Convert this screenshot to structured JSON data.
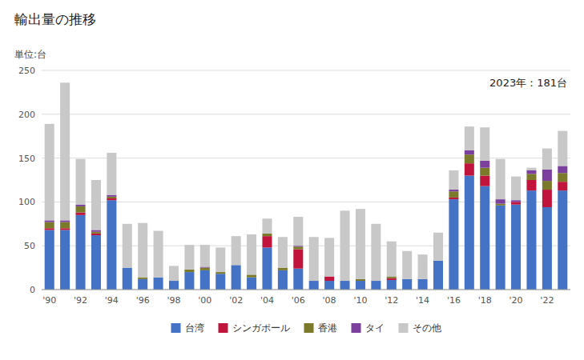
{
  "chart_data": {
    "type": "bar",
    "stacked": true,
    "title": "輸出量の推移",
    "ylabel": "単位:台",
    "annotation": "2023年：181台",
    "categories": [
      "'90",
      null,
      "'92",
      null,
      "'94",
      null,
      "'96",
      null,
      "'98",
      null,
      "'00",
      null,
      "'02",
      null,
      "'04",
      null,
      "'06",
      null,
      "'08",
      null,
      "'10",
      null,
      "'12",
      null,
      "'14",
      null,
      "'16",
      null,
      "'18",
      null,
      "'20",
      null,
      "'22",
      null
    ],
    "series": [
      {
        "name": "台湾",
        "color": "#4472C4",
        "values": [
          68,
          68,
          85,
          62,
          102,
          25,
          12,
          14,
          10,
          20,
          22,
          18,
          28,
          14,
          48,
          22,
          24,
          10,
          10,
          10,
          10,
          10,
          11,
          12,
          12,
          33,
          103,
          130,
          118,
          96,
          97,
          113,
          94,
          113
        ]
      },
      {
        "name": "シンガポール",
        "color": "#C0143C",
        "values": [
          2,
          2,
          3,
          2,
          2,
          0,
          0,
          0,
          0,
          0,
          0,
          0,
          0,
          0,
          13,
          0,
          22,
          0,
          5,
          0,
          0,
          0,
          2,
          0,
          0,
          0,
          2,
          14,
          12,
          0,
          3,
          12,
          20,
          10
        ]
      },
      {
        "name": "香港",
        "color": "#7A7A2A",
        "values": [
          7,
          7,
          7,
          2,
          2,
          0,
          2,
          0,
          0,
          3,
          3,
          2,
          0,
          3,
          3,
          3,
          3,
          0,
          0,
          0,
          2,
          0,
          2,
          0,
          0,
          0,
          7,
          10,
          9,
          2,
          0,
          7,
          10,
          10
        ]
      },
      {
        "name": "タイ",
        "color": "#7B3F9E",
        "values": [
          2,
          2,
          2,
          2,
          2,
          0,
          0,
          0,
          0,
          0,
          1,
          0,
          0,
          0,
          0,
          0,
          1,
          0,
          0,
          0,
          0,
          0,
          0,
          0,
          0,
          0,
          2,
          5,
          8,
          5,
          2,
          4,
          13,
          8
        ]
      },
      {
        "name": "その他",
        "color": "#C8C8C8",
        "values": [
          110,
          157,
          52,
          57,
          48,
          50,
          62,
          53,
          17,
          28,
          25,
          28,
          33,
          46,
          17,
          35,
          33,
          50,
          44,
          80,
          80,
          65,
          40,
          32,
          28,
          32,
          22,
          27,
          38,
          46,
          27,
          3,
          24,
          40
        ]
      }
    ],
    "ylim": [
      0,
      250
    ],
    "yticks": [
      0,
      50,
      100,
      150,
      200,
      250
    ],
    "grid": true,
    "legend": "bottom"
  }
}
